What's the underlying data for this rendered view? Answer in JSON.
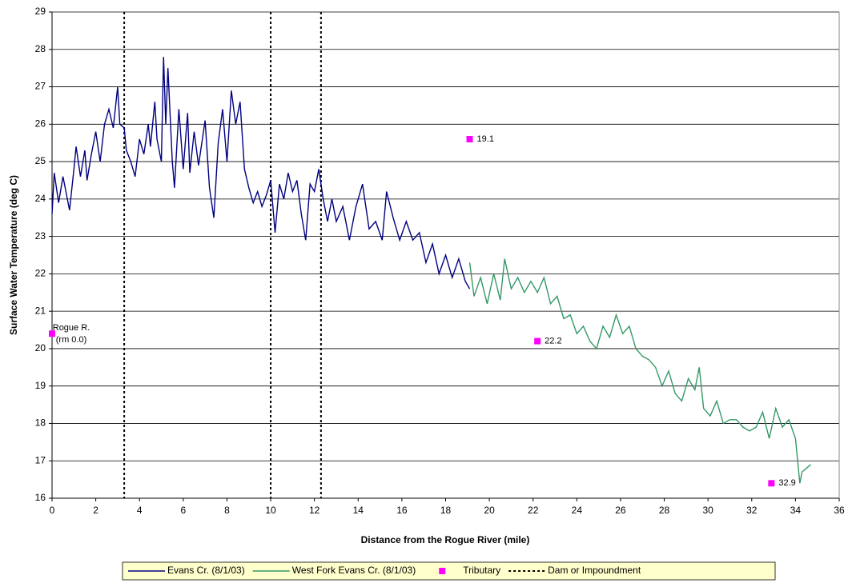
{
  "chart_data": {
    "type": "line",
    "x_label": "Distance from the Rogue River (mile)",
    "y_label": "Surface Water Temperature (deg C)",
    "xlim": [
      0,
      36
    ],
    "xticks": [
      0,
      2,
      4,
      6,
      8,
      10,
      12,
      14,
      16,
      18,
      20,
      22,
      24,
      26,
      28,
      30,
      32,
      34,
      36
    ],
    "ylim": [
      16,
      29
    ],
    "yticks": [
      16,
      17,
      18,
      19,
      20,
      21,
      22,
      23,
      24,
      25,
      26,
      27,
      28,
      29
    ],
    "grid": true,
    "legend": "bottom",
    "series": [
      {
        "name": "Evans Cr. (8/1/03)",
        "color": "#000080",
        "x": [
          0,
          0.1,
          0.3,
          0.5,
          0.7,
          0.8,
          1.0,
          1.1,
          1.3,
          1.5,
          1.6,
          1.8,
          2.0,
          2.2,
          2.4,
          2.6,
          2.8,
          3.0,
          3.1,
          3.3,
          3.4,
          3.6,
          3.8,
          4.0,
          4.2,
          4.4,
          4.5,
          4.7,
          4.8,
          5.0,
          5.1,
          5.2,
          5.3,
          5.5,
          5.6,
          5.8,
          6.0,
          6.2,
          6.3,
          6.5,
          6.7,
          7.0,
          7.2,
          7.4,
          7.6,
          7.8,
          8.0,
          8.2,
          8.4,
          8.6,
          8.8,
          9.0,
          9.2,
          9.4,
          9.6,
          9.8,
          10.0,
          10.2,
          10.4,
          10.6,
          10.8,
          11.0,
          11.2,
          11.4,
          11.6,
          11.8,
          12.0,
          12.2,
          12.4,
          12.6,
          12.8,
          13.0,
          13.3,
          13.6,
          13.9,
          14.2,
          14.5,
          14.8,
          15.1,
          15.3,
          15.6,
          15.9,
          16.2,
          16.5,
          16.8,
          17.1,
          17.4,
          17.7,
          18.0,
          18.3,
          18.6,
          18.9,
          19.1
        ],
        "values": [
          23.6,
          24.7,
          23.9,
          24.6,
          24.0,
          23.7,
          24.8,
          25.4,
          24.6,
          25.3,
          24.5,
          25.2,
          25.8,
          25.0,
          26.0,
          26.4,
          25.9,
          27.0,
          26.0,
          25.9,
          25.3,
          25.0,
          24.6,
          25.6,
          25.2,
          26.0,
          25.4,
          26.6,
          25.6,
          25.0,
          27.8,
          26.0,
          27.5,
          25.0,
          24.3,
          26.4,
          24.8,
          26.3,
          24.7,
          25.8,
          24.9,
          26.1,
          24.3,
          23.5,
          25.5,
          26.4,
          25.0,
          26.9,
          26.0,
          26.6,
          24.8,
          24.3,
          23.9,
          24.2,
          23.8,
          24.1,
          24.5,
          23.1,
          24.4,
          24.0,
          24.7,
          24.2,
          24.5,
          23.6,
          22.9,
          24.4,
          24.2,
          24.8,
          24.0,
          23.4,
          24.0,
          23.4,
          23.8,
          22.9,
          23.8,
          24.4,
          23.2,
          23.4,
          22.9,
          24.2,
          23.5,
          22.9,
          23.4,
          22.9,
          23.1,
          22.3,
          22.8,
          22.0,
          22.5,
          21.9,
          22.4,
          21.8,
          21.6
        ]
      },
      {
        "name": "West Fork Evans Cr. (8/1/03)",
        "color": "#339966",
        "x": [
          19.1,
          19.3,
          19.6,
          19.9,
          20.2,
          20.5,
          20.7,
          21.0,
          21.3,
          21.6,
          21.9,
          22.2,
          22.5,
          22.8,
          23.1,
          23.4,
          23.7,
          24.0,
          24.3,
          24.6,
          24.9,
          25.2,
          25.5,
          25.8,
          26.1,
          26.4,
          26.7,
          27.0,
          27.3,
          27.6,
          27.9,
          28.2,
          28.5,
          28.8,
          29.1,
          29.4,
          29.6,
          29.8,
          30.1,
          30.4,
          30.7,
          31.0,
          31.3,
          31.6,
          31.9,
          32.2,
          32.5,
          32.8,
          33.1,
          33.4,
          33.7,
          34.0,
          34.2,
          34.3,
          34.7
        ],
        "values": [
          22.3,
          21.4,
          21.9,
          21.2,
          22.0,
          21.3,
          22.4,
          21.6,
          21.9,
          21.5,
          21.8,
          21.5,
          21.9,
          21.2,
          21.4,
          20.8,
          20.9,
          20.4,
          20.6,
          20.2,
          20.0,
          20.6,
          20.3,
          20.9,
          20.4,
          20.6,
          20.0,
          19.8,
          19.7,
          19.5,
          19.0,
          19.4,
          18.8,
          18.6,
          19.2,
          18.9,
          19.5,
          18.4,
          18.2,
          18.6,
          18.0,
          18.1,
          18.1,
          17.9,
          17.8,
          17.9,
          18.3,
          17.6,
          18.4,
          17.9,
          18.1,
          17.6,
          16.4,
          16.7,
          16.9
        ]
      },
      {
        "name": "Tributary",
        "type": "scatter",
        "color": "#ff00ff",
        "x": [
          0,
          19.1,
          22.2,
          32.9
        ],
        "values": [
          20.4,
          25.6,
          20.2,
          16.4
        ],
        "labels": [
          [
            "Rogue R.",
            "(rm 0.0)"
          ],
          "19.1",
          "22.2",
          "32.9"
        ]
      }
    ],
    "dams": {
      "name": "Dam or Impoundment",
      "x": [
        3.3,
        10.0,
        12.3
      ]
    }
  }
}
